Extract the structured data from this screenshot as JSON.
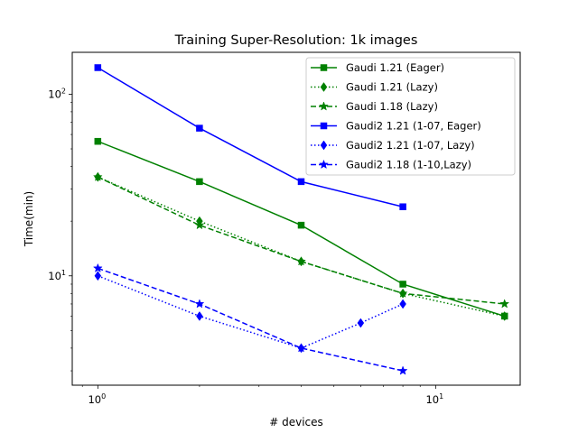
{
  "chart_data": {
    "type": "line",
    "title": "Training Super-Resolution: 1k images",
    "xlabel": "# devices",
    "ylabel": "Time(min)",
    "xscale": "log",
    "yscale": "log",
    "xlim": [
      0.84,
      17.8
    ],
    "ylim": [
      2.5,
      170
    ],
    "x_ticks": [
      {
        "value": 1,
        "base": "10",
        "exp": "0"
      },
      {
        "value": 10,
        "base": "10",
        "exp": "1"
      }
    ],
    "y_ticks": [
      {
        "value": 10,
        "base": "10",
        "exp": "1"
      },
      {
        "value": 100,
        "base": "10",
        "exp": "2"
      }
    ],
    "grid": false,
    "legend_position": "top-right",
    "series": [
      {
        "name": "Gaudi 1.21 (Eager)",
        "color": "#008000",
        "linestyle": "solid",
        "marker": "square",
        "x": [
          1,
          2,
          4,
          8,
          16
        ],
        "y": [
          55,
          33,
          19,
          9,
          6
        ]
      },
      {
        "name": "Gaudi 1.21 (Lazy)",
        "color": "#008000",
        "linestyle": "dotted",
        "marker": "diamond",
        "x": [
          1,
          2,
          4,
          8,
          16
        ],
        "y": [
          35,
          20,
          12,
          8,
          6
        ]
      },
      {
        "name": "Gaudi 1.18 (Lazy)",
        "color": "#008000",
        "linestyle": "dashed",
        "marker": "star",
        "x": [
          1,
          2,
          4,
          8,
          16
        ],
        "y": [
          35,
          19,
          12,
          8,
          7
        ]
      },
      {
        "name": "Gaudi2 1.21 (1-07, Eager)",
        "color": "#0000ff",
        "linestyle": "solid",
        "marker": "square",
        "x": [
          1,
          2,
          4,
          8
        ],
        "y": [
          140,
          65,
          33,
          24
        ]
      },
      {
        "name": "Gaudi2 1.21 (1-07, Lazy)",
        "color": "#0000ff",
        "linestyle": "dotted",
        "marker": "diamond",
        "x": [
          1,
          2,
          4,
          6,
          8
        ],
        "y": [
          10,
          6,
          4,
          5.5,
          7
        ]
      },
      {
        "name": "Gaudi2 1.18 (1-10,Lazy)",
        "color": "#0000ff",
        "linestyle": "dashed",
        "marker": "star",
        "x": [
          1,
          2,
          4,
          8
        ],
        "y": [
          11,
          7,
          4,
          3
        ]
      }
    ]
  }
}
